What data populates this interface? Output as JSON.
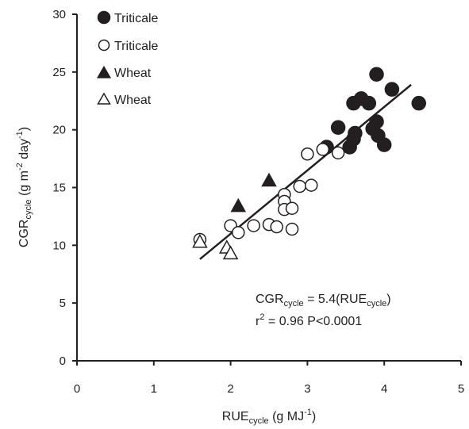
{
  "chart_data": {
    "type": "scatter",
    "xlim": [
      0,
      5
    ],
    "ylim": [
      0,
      30
    ],
    "x_ticks": [
      "0",
      "1",
      "2",
      "3",
      "4",
      "5"
    ],
    "y_ticks": [
      "0",
      "5",
      "10",
      "15",
      "20",
      "25",
      "30"
    ],
    "xlabel": {
      "main": "RUE",
      "sub": "cycle",
      "unit_pre": " (g MJ",
      "unit_sup": "-1",
      "unit_post": ")"
    },
    "ylabel": {
      "main": "CGR",
      "sub": "cycle",
      "unit_pre": " (g m",
      "sup1": "-2",
      "mid": " day",
      "sup2": "-1",
      "unit_post": ")"
    },
    "legend_placement": "top-left",
    "series": [
      {
        "name": "Triticale",
        "marker": "circle",
        "filled": true,
        "color": "#231f20",
        "points": [
          [
            3.25,
            18.5
          ],
          [
            3.4,
            20.2
          ],
          [
            3.6,
            22.3
          ],
          [
            3.7,
            22.7
          ],
          [
            3.8,
            22.3
          ],
          [
            3.9,
            24.8
          ],
          [
            4.1,
            23.5
          ],
          [
            4.45,
            22.3
          ],
          [
            3.55,
            18.5
          ],
          [
            3.6,
            19.2
          ],
          [
            3.62,
            19.7
          ],
          [
            3.85,
            20.1
          ],
          [
            3.9,
            20.7
          ],
          [
            3.92,
            19.5
          ],
          [
            4.0,
            18.7
          ]
        ]
      },
      {
        "name": "Triticale",
        "marker": "circle",
        "filled": false,
        "color": "#231f20",
        "points": [
          [
            1.6,
            10.5
          ],
          [
            2.0,
            11.7
          ],
          [
            2.1,
            11.1
          ],
          [
            2.3,
            11.7
          ],
          [
            2.5,
            11.8
          ],
          [
            2.6,
            11.6
          ],
          [
            2.7,
            14.4
          ],
          [
            2.7,
            13.8
          ],
          [
            2.7,
            13.1
          ],
          [
            2.8,
            13.2
          ],
          [
            2.8,
            11.4
          ],
          [
            2.9,
            15.1
          ],
          [
            3.05,
            15.2
          ],
          [
            3.0,
            17.9
          ],
          [
            3.2,
            18.3
          ],
          [
            3.4,
            18.0
          ]
        ]
      },
      {
        "name": "Wheat",
        "marker": "triangle",
        "filled": true,
        "color": "#231f20",
        "points": [
          [
            2.1,
            13.4
          ],
          [
            2.5,
            15.6
          ]
        ]
      },
      {
        "name": "Wheat",
        "marker": "triangle",
        "filled": false,
        "color": "#231f20",
        "points": [
          [
            1.6,
            10.3
          ],
          [
            1.95,
            9.8
          ],
          [
            2.0,
            9.3
          ]
        ]
      }
    ],
    "fit_line": {
      "x": [
        1.6,
        4.35
      ],
      "y": [
        8.8,
        23.9
      ]
    },
    "annotation": {
      "line1": {
        "main": "CGR",
        "sub": "cycle",
        "rest": " = 5.4(RUE",
        "sub2": "cycle",
        "end": ")"
      },
      "line2": {
        "main": "r",
        "sup": "2",
        "rest": " = 0.96 P<0.0001"
      }
    }
  }
}
